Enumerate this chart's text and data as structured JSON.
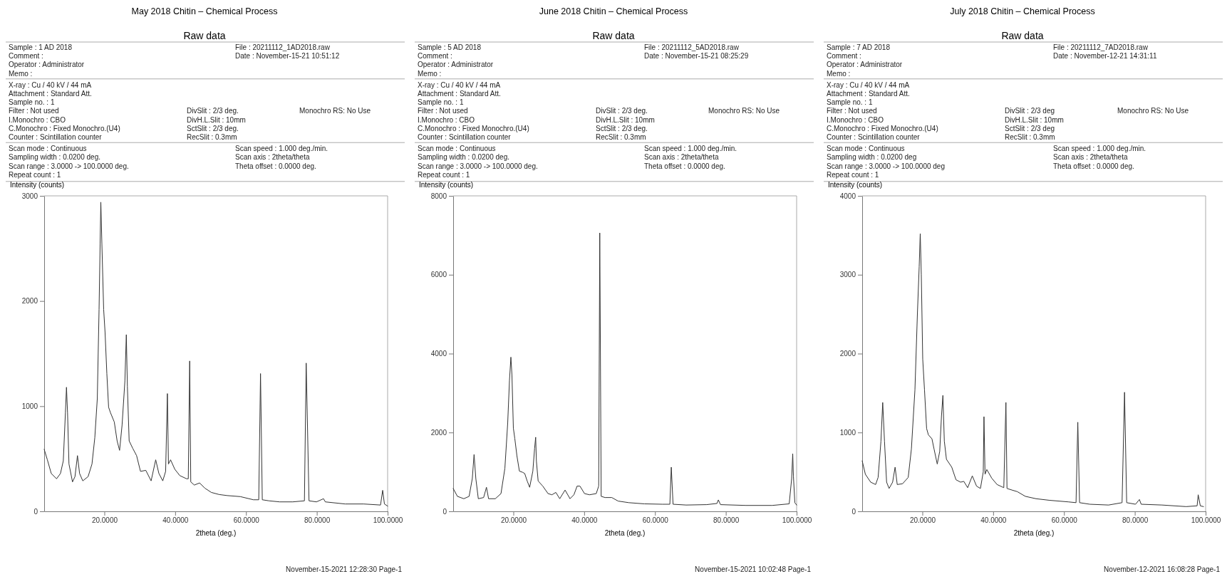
{
  "chart_data": [
    {
      "type": "line",
      "title": "May 2018 Chitin – Chemical Process",
      "subtitle": "Raw data",
      "ylabel": "Intensity (counts)",
      "xlabel": "2theta (deg.)",
      "xlim": [
        3,
        100
      ],
      "xticks": [
        {
          "value": 20,
          "label": "20.0000"
        },
        {
          "value": 40,
          "label": "40.0000"
        },
        {
          "value": 60,
          "label": "60.0000"
        },
        {
          "value": 80,
          "label": "80.0000"
        },
        {
          "value": 100,
          "label": "100.0000"
        }
      ],
      "ylim": [
        0,
        3000
      ],
      "yticks": [
        0,
        1000,
        2000,
        3000
      ],
      "x": [
        3.0,
        3.9,
        5.0,
        6.5,
        7.6,
        8.4,
        9.0,
        9.3,
        9.6,
        10.0,
        11.0,
        11.7,
        12.4,
        13.0,
        13.9,
        15.4,
        16.5,
        17.3,
        18.0,
        18.5,
        18.8,
        19.0,
        19.3,
        19.8,
        20.2,
        20.7,
        21.2,
        21.7,
        22.8,
        23.6,
        24.3,
        25.0,
        25.8,
        26.2,
        26.5,
        27.0,
        28.0,
        29.1,
        30.2,
        31.7,
        33.2,
        34.5,
        35.4,
        36.5,
        37.3,
        37.8,
        38.1,
        38.7,
        39.9,
        41.3,
        43.2,
        43.7,
        44.1,
        44.4,
        45.4,
        46.9,
        48.4,
        50.2,
        52.4,
        54.7,
        58.4,
        62.1,
        63.6,
        64.1,
        64.6,
        66.5,
        69.5,
        73.2,
        76.5,
        77.0,
        77.8,
        79.9,
        81.9,
        82.4,
        88.0,
        93.2,
        98.0,
        98.6,
        99.1,
        100.0
      ],
      "series": [
        {
          "color": "#333333",
          "values": [
            590,
            490,
            360,
            310,
            360,
            480,
            940,
            1180,
            940,
            450,
            280,
            330,
            530,
            360,
            290,
            330,
            450,
            700,
            1070,
            1920,
            2540,
            2940,
            2540,
            1920,
            1700,
            1310,
            990,
            940,
            850,
            670,
            580,
            820,
            1240,
            1680,
            1190,
            670,
            600,
            530,
            380,
            390,
            290,
            490,
            360,
            290,
            380,
            1120,
            450,
            490,
            400,
            340,
            310,
            310,
            1430,
            280,
            250,
            270,
            220,
            180,
            160,
            150,
            140,
            110,
            110,
            1310,
            110,
            100,
            90,
            90,
            100,
            1410,
            100,
            90,
            120,
            90,
            70,
            70,
            60,
            200,
            70,
            50
          ]
        }
      ],
      "annotations": [
        "Sample : 1 AD 2018",
        "Comment :",
        "Operator : Administrator",
        "Memo :",
        "File : 20211112_1AD2018.raw",
        "Date : November-15-21 10:51:12",
        "X-ray : Cu / 40 kV / 44 mA",
        "Attachment : Standard Att.",
        "Sample no. : 1",
        "Filter : Not used",
        "I.Monochro : CBO",
        "C.Monochro : Fixed Monochro.(U4)",
        "Counter : Scintillation counter",
        "DivSlit : 2/3 deg.",
        "DivH.L.Slit : 10mm",
        "SctSlit : 2/3 deg.",
        "RecSlit : 0.3mm",
        "Monochro RS: No Use",
        "Scan mode : Continuous",
        "Sampling width : 0.0200 deg.",
        "Scan range : 3.0000 -> 100.0000 deg.",
        "Repeat count : 1",
        "Scan speed : 1.000 deg./min.",
        "Scan axis : 2theta/theta",
        "Theta offset : 0.0000 deg.",
        "November-15-2021 12:28:30 Page-1"
      ]
    },
    {
      "type": "line",
      "title": "June 2018 Chitin – Chemical Process",
      "subtitle": "Raw data",
      "ylabel": "Intensity (counts)",
      "xlabel": "2theta (deg.)",
      "xlim": [
        3,
        100
      ],
      "xticks": [
        {
          "value": 20,
          "label": "20.0000"
        },
        {
          "value": 40,
          "label": "40.0000"
        },
        {
          "value": 60,
          "label": "60.0000"
        },
        {
          "value": 80,
          "label": "80.0000"
        },
        {
          "value": 100,
          "label": "100.0000"
        }
      ],
      "ylim": [
        0,
        8000
      ],
      "yticks": [
        0,
        2000,
        4000,
        6000,
        8000
      ],
      "x": [
        3.0,
        4.2,
        6.0,
        7.5,
        8.4,
        8.9,
        9.4,
        10.1,
        11.6,
        12.4,
        13.0,
        14.9,
        16.5,
        17.6,
        18.4,
        18.9,
        19.3,
        19.6,
        20.0,
        20.4,
        21.0,
        21.7,
        22.6,
        23.2,
        23.9,
        24.6,
        25.5,
        26.0,
        26.3,
        26.5,
        27.0,
        28.3,
        29.8,
        30.9,
        32.0,
        33.1,
        34.6,
        36.0,
        37.1,
        38.0,
        38.8,
        40.1,
        41.5,
        43.4,
        44.1,
        44.4,
        44.8,
        45.9,
        47.8,
        49.6,
        52.6,
        57.0,
        62.1,
        64.2,
        64.6,
        65.1,
        68.8,
        74.6,
        77.5,
        77.9,
        78.5,
        85.7,
        93.1,
        97.9,
        98.6,
        98.9,
        99.1,
        99.5,
        100.0
      ],
      "series": [
        {
          "color": "#333333",
          "values": [
            580,
            380,
            320,
            380,
            830,
            1440,
            830,
            320,
            350,
            610,
            320,
            320,
            450,
            1090,
            2240,
            3320,
            3910,
            3450,
            2110,
            1850,
            1410,
            1020,
            990,
            960,
            770,
            610,
            1020,
            1600,
            1880,
            1280,
            770,
            640,
            450,
            420,
            480,
            320,
            540,
            320,
            420,
            640,
            640,
            450,
            420,
            450,
            640,
            7060,
            380,
            350,
            350,
            260,
            220,
            190,
            180,
            180,
            1120,
            180,
            160,
            170,
            200,
            290,
            170,
            150,
            150,
            190,
            830,
            1460,
            890,
            220,
            160
          ]
        }
      ],
      "annotations": [
        "Sample : 5 AD 2018",
        "Comment :",
        "Operator : Administrator",
        "Memo :",
        "File : 20211112_5AD2018.raw",
        "Date : November-15-21 08:25:29",
        "X-ray : Cu / 40 kV / 44 mA",
        "Attachment : Standard Att.",
        "Sample no. : 1",
        "Filter : Not used",
        "I.Monochro : CBO",
        "C.Monochro : Fixed Monochro.(U4)",
        "Counter : Scintillation counter",
        "DivSlit : 2/3 deg.",
        "DivH.L.Slit : 10mm",
        "SctSlit : 2/3 deg.",
        "RecSlit : 0.3mm",
        "Monochro RS: No Use",
        "Scan mode : Continuous",
        "Sampling width : 0.0200 deg.",
        "Scan range : 3.0000 -> 100.0000 deg.",
        "Repeat count : 1",
        "Scan speed : 1.000 deg./min.",
        "Scan axis : 2theta/theta",
        "Theta offset : 0.0000 deg.",
        "November-15-2021 10:02:48 Page-1"
      ]
    },
    {
      "type": "line",
      "title": "July 2018 Chitin – Chemical Process",
      "subtitle": "Raw data",
      "ylabel": "Intensity (counts)",
      "xlabel": "2theta (deg.)",
      "xlim": [
        3,
        100
      ],
      "xticks": [
        {
          "value": 20,
          "label": "20.0000"
        },
        {
          "value": 40,
          "label": "40.0000"
        },
        {
          "value": 60,
          "label": "60.0000"
        },
        {
          "value": 80,
          "label": "80.0000"
        },
        {
          "value": 100,
          "label": "100.0000"
        }
      ],
      "ylim": [
        0,
        4000
      ],
      "yticks": [
        0,
        1000,
        2000,
        3000,
        4000
      ],
      "x": [
        3.0,
        3.9,
        5.4,
        6.8,
        7.5,
        8.3,
        8.8,
        9.3,
        9.9,
        10.6,
        11.6,
        12.3,
        12.9,
        14.4,
        16.0,
        16.9,
        17.9,
        18.6,
        19.1,
        19.4,
        19.7,
        20.1,
        20.6,
        21.2,
        21.7,
        22.7,
        23.3,
        24.2,
        24.9,
        25.4,
        25.8,
        26.2,
        26.8,
        28.3,
        29.5,
        30.8,
        31.7,
        32.8,
        34.1,
        35.3,
        36.4,
        37.2,
        37.4,
        37.7,
        38.2,
        39.6,
        41.1,
        43.0,
        43.6,
        43.9,
        45.3,
        46.8,
        49.1,
        52.1,
        55.9,
        61.2,
        63.4,
        63.9,
        64.4,
        67.3,
        72.6,
        76.4,
        77.1,
        77.7,
        80.2,
        81.3,
        81.8,
        87.7,
        94.5,
        97.6,
        97.9,
        98.5,
        99.4
      ],
      "series": [
        {
          "color": "#333333",
          "values": [
            640,
            470,
            370,
            340,
            430,
            890,
            1380,
            890,
            370,
            290,
            370,
            560,
            340,
            350,
            430,
            790,
            1540,
            2510,
            3100,
            3520,
            3000,
            1930,
            1540,
            1050,
            970,
            920,
            790,
            600,
            760,
            1210,
            1470,
            890,
            660,
            560,
            400,
            370,
            380,
            300,
            450,
            320,
            290,
            500,
            1200,
            470,
            530,
            420,
            340,
            300,
            1380,
            290,
            270,
            250,
            190,
            160,
            140,
            120,
            110,
            1130,
            110,
            90,
            80,
            110,
            1510,
            110,
            90,
            150,
            90,
            80,
            60,
            70,
            210,
            70,
            60
          ]
        }
      ],
      "annotations": [
        "Sample : 7 AD 2018",
        "Comment :",
        "Operator : Administrator",
        "Memo :",
        "File : 20211112_7AD2018.raw",
        "Date : November-12-21 14:31:11",
        "X-ray : Cu / 40 kV / 44 mA",
        "Attachment : Standard Att.",
        "Sample no. : 1",
        "Filter : Not used",
        "I.Monochro : CBO",
        "C.Monochro : Fixed Monochro.(U4)",
        "Counter : Scintillation counter",
        "DivSlit : 2/3 deg",
        "DivH.L.Slit : 10mm",
        "SctSlit : 2/3 deg",
        "RecSlit : 0.3mm",
        "Monochro RS: No Use",
        "Scan mode : Continuous",
        "Sampling width : 0.0200 deg",
        "Scan range : 3.0000 -> 100.0000 deg",
        "Repeat count : 1",
        "Scan speed : 1.000 deg./min.",
        "Scan axis : 2theta/theta",
        "Theta offset : 0.0000 deg.",
        "November-12-2021 16:08:28 Page-1"
      ]
    }
  ]
}
